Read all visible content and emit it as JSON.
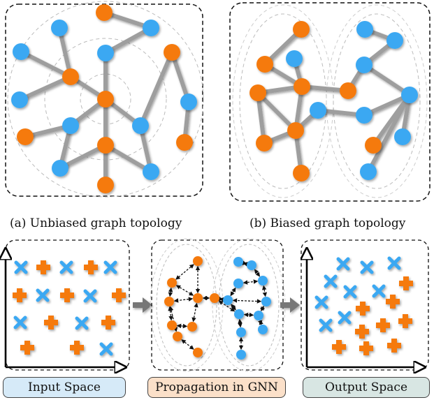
{
  "captions": {
    "a": "(a) Unbiased graph topology",
    "b": "(b) Biased graph topology"
  },
  "panels": {
    "input_label": "Input Space",
    "propagation_label": "Propagation in GNN",
    "output_label": "Output Space"
  },
  "colors": {
    "orange": "#F57A10",
    "blue": "#3AA8F2",
    "edge": "#9E9E9E",
    "input_bg": "#D6EAF8",
    "propagation_bg": "#FBE0C9",
    "output_bg": "#D8E6E3"
  },
  "icons": [
    "cross-mark-icon",
    "plus-mark-icon",
    "arrow-right-icon"
  ]
}
